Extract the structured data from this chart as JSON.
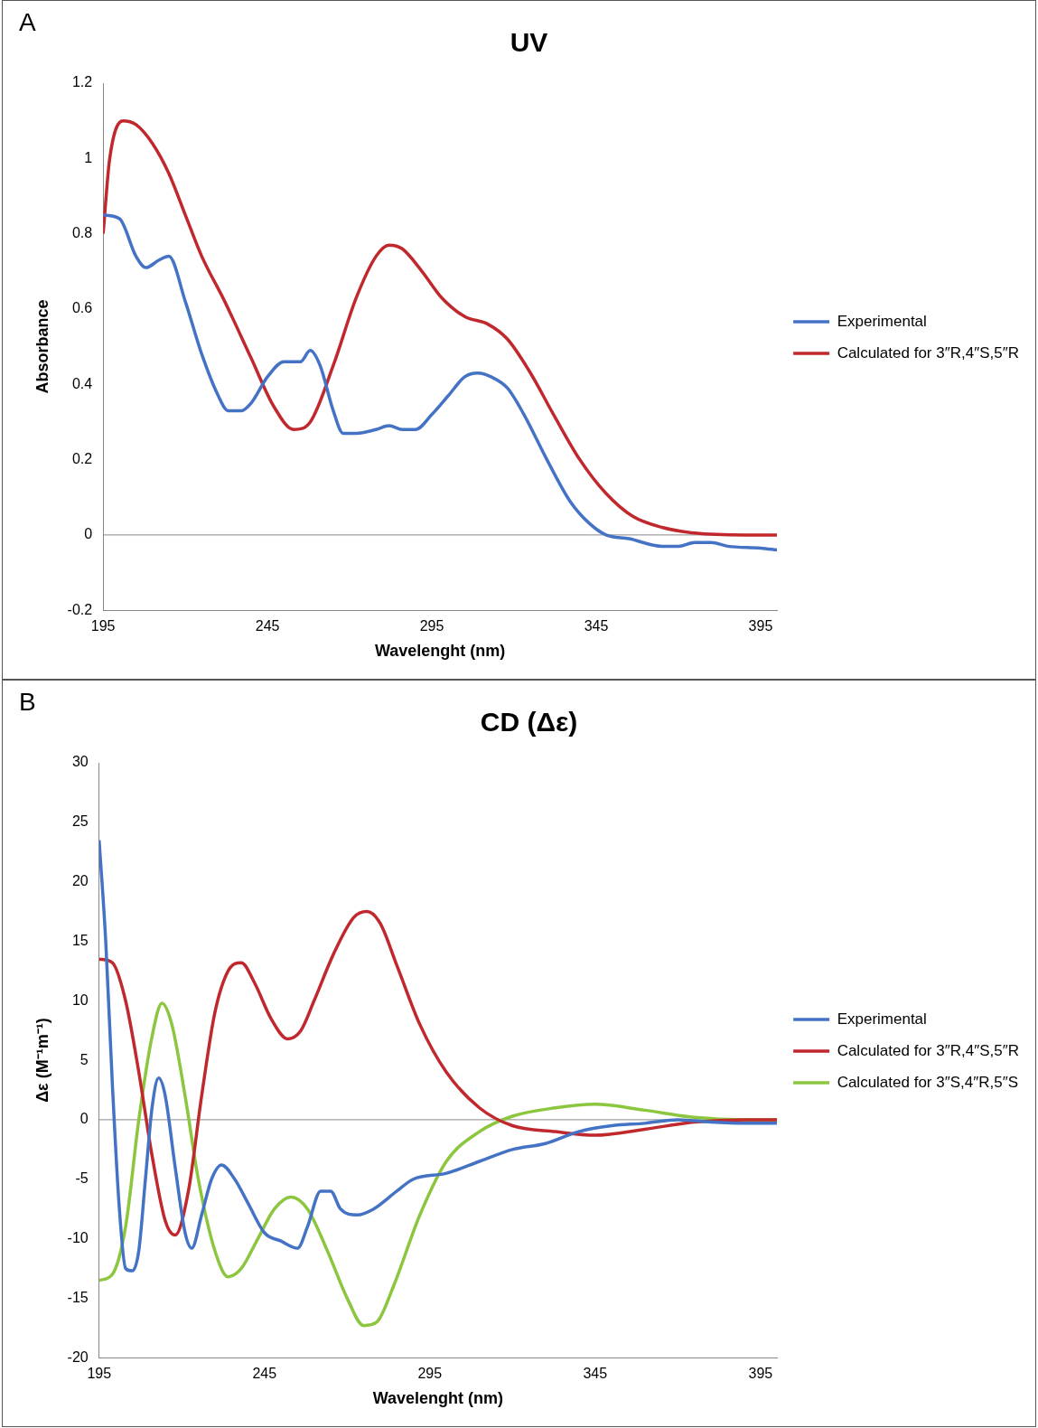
{
  "chart_data": [
    {
      "type": "line",
      "title": "UV",
      "xlabel": "Wavelenght (nm)",
      "ylabel": "Absorbance",
      "annotations": [
        "A"
      ],
      "legend": "right",
      "xlim": [
        195,
        400
      ],
      "ylim": [
        -0.2,
        1.2
      ],
      "xticks": [
        195,
        245,
        295,
        345,
        395
      ],
      "yticks": [
        -0.2,
        0,
        0.2,
        0.4,
        0.6,
        0.8,
        1,
        1.2
      ],
      "series": [
        {
          "name": "Experimental",
          "color": "#4472c4",
          "x": [
            195,
            200,
            205,
            208,
            212,
            215,
            220,
            225,
            230,
            233,
            237,
            240,
            245,
            250,
            255,
            258,
            261,
            265,
            268,
            272,
            278,
            282,
            286,
            290,
            295,
            300,
            305,
            309,
            313,
            318,
            323,
            330,
            337,
            343,
            348,
            355,
            365,
            370,
            375,
            380,
            385,
            395,
            400
          ],
          "values": [
            0.85,
            0.84,
            0.74,
            0.71,
            0.73,
            0.74,
            0.62,
            0.48,
            0.37,
            0.33,
            0.33,
            0.35,
            0.42,
            0.46,
            0.46,
            0.49,
            0.45,
            0.33,
            0.27,
            0.27,
            0.28,
            0.29,
            0.28,
            0.28,
            0.32,
            0.37,
            0.42,
            0.43,
            0.42,
            0.39,
            0.32,
            0.2,
            0.09,
            0.03,
            0,
            -0.01,
            -0.03,
            -0.03,
            -0.02,
            -0.02,
            -0.03,
            -0.035,
            -0.04
          ]
        },
        {
          "name": "Calculated for 3″R,4″S,5″R",
          "color": "#c0282d",
          "x": [
            195,
            197,
            201,
            205,
            210,
            215,
            220,
            225,
            232,
            240,
            247,
            253,
            258,
            265,
            272,
            278,
            282,
            286,
            292,
            298,
            305,
            312,
            318,
            325,
            332,
            340,
            348,
            356,
            365,
            375,
            390,
            400
          ],
          "values": [
            0.8,
            1,
            1.1,
            1.09,
            1.04,
            0.96,
            0.85,
            0.74,
            0.62,
            0.47,
            0.34,
            0.28,
            0.3,
            0.45,
            0.63,
            0.74,
            0.77,
            0.76,
            0.7,
            0.63,
            0.58,
            0.56,
            0.52,
            0.43,
            0.32,
            0.2,
            0.11,
            0.05,
            0.02,
            0.005,
            0,
            0
          ]
        }
      ]
    },
    {
      "type": "line",
      "title": "CD (Δε)",
      "xlabel": "Wavelenght (nm)",
      "ylabel": "Δε (M⁻¹m⁻¹)",
      "annotations": [
        "B"
      ],
      "legend": "right",
      "xlim": [
        195,
        400
      ],
      "ylim": [
        -20,
        30
      ],
      "xticks": [
        195,
        245,
        295,
        345,
        395
      ],
      "yticks": [
        -20,
        -15,
        -10,
        -5,
        0,
        5,
        10,
        15,
        20,
        25,
        30
      ],
      "series": [
        {
          "name": "Experimental",
          "color": "#4472c4",
          "x": [
            195,
            197,
            199,
            201,
            203,
            205,
            207,
            209,
            211,
            213,
            215,
            218,
            221,
            223,
            226,
            229,
            232,
            236,
            240,
            245,
            250,
            255,
            258,
            262,
            265,
            268,
            273,
            278,
            285,
            290,
            300,
            310,
            320,
            330,
            340,
            350,
            360,
            370,
            380,
            390,
            400
          ],
          "values": [
            23.5,
            15,
            3,
            -7,
            -12.5,
            -12.7,
            -11,
            -5,
            1,
            3.5,
            2,
            -4,
            -9.5,
            -10.8,
            -8,
            -5,
            -3.8,
            -5,
            -7,
            -9.5,
            -10.2,
            -10.8,
            -9,
            -6,
            -6,
            -7.5,
            -8,
            -7.5,
            -6,
            -5,
            -4.5,
            -3.5,
            -2.5,
            -2,
            -1,
            -0.5,
            -0.3,
            0,
            -0.2,
            -0.3,
            -0.3
          ]
        },
        {
          "name": "Calculated for 3″R,4″S,5″R",
          "color": "#c0282d",
          "x": [
            195,
            199,
            203,
            207,
            211,
            215,
            218,
            222,
            226,
            230,
            234,
            238,
            242,
            247,
            252,
            256,
            260,
            266,
            272,
            276,
            280,
            285,
            292,
            300,
            310,
            320,
            333,
            345,
            360,
            375,
            390,
            400
          ],
          "values": [
            13.5,
            13.2,
            10,
            4,
            -3,
            -8.5,
            -9.7,
            -6,
            2,
            9,
            12.5,
            13.2,
            11.5,
            8.5,
            6.8,
            7.5,
            10,
            14,
            17,
            17.5,
            16.5,
            13,
            8,
            4,
            1,
            -0.5,
            -1,
            -1.3,
            -0.8,
            -0.2,
            0,
            0
          ]
        },
        {
          "name": "Calculated for 3″S,4″R,5″S",
          "color": "#8cc63f",
          "x": [
            195,
            199,
            203,
            207,
            211,
            214,
            217,
            221,
            225,
            230,
            234,
            238,
            243,
            248,
            253,
            258,
            264,
            270,
            275,
            279,
            284,
            292,
            300,
            310,
            320,
            333,
            345,
            360,
            375,
            390,
            400
          ],
          "values": [
            -13.5,
            -13,
            -9,
            0,
            7,
            9.8,
            8,
            2,
            -5,
            -11,
            -13.2,
            -12.5,
            -10,
            -7.5,
            -6.5,
            -7.5,
            -11,
            -15,
            -17.3,
            -17,
            -14,
            -8,
            -3.5,
            -1,
            0.3,
            1,
            1.3,
            0.8,
            0.2,
            0,
            0
          ]
        }
      ]
    }
  ]
}
